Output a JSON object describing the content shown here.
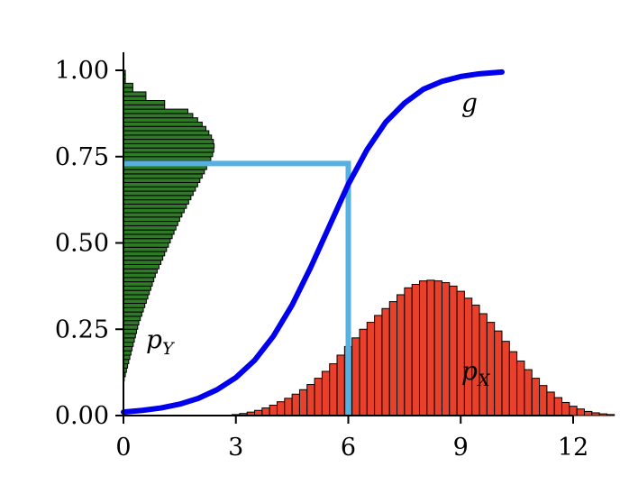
{
  "chart_data": {
    "type": "line",
    "xlim": [
      0,
      12
    ],
    "ylim": [
      0,
      1
    ],
    "x_ticks": [
      "0",
      "3",
      "6",
      "9",
      "12"
    ],
    "y_ticks": [
      "0.00",
      "0.25",
      "0.50",
      "0.75",
      "1.00"
    ],
    "grid": false,
    "curve": {
      "label": "g",
      "color": "#0000ee",
      "x": [
        0,
        0.5,
        1,
        1.5,
        2,
        2.5,
        3,
        3.5,
        4,
        4.5,
        5,
        5.5,
        6,
        6.5,
        7,
        7.5,
        8,
        8.5,
        9,
        9.5,
        10.1
      ],
      "y": [
        0.01,
        0.015,
        0.022,
        0.033,
        0.05,
        0.075,
        0.11,
        0.16,
        0.23,
        0.32,
        0.43,
        0.55,
        0.67,
        0.77,
        0.85,
        0.905,
        0.945,
        0.968,
        0.982,
        0.99,
        0.995
      ]
    },
    "marker": {
      "color": "#56b0e0",
      "x": 6.0,
      "y": 0.73
    },
    "px_histogram": {
      "label": "X",
      "color": "#e8402a",
      "bin_width": 0.2,
      "x_start": 2.9,
      "values": [
        0.003,
        0.006,
        0.01,
        0.015,
        0.022,
        0.03,
        0.04,
        0.05,
        0.062,
        0.075,
        0.09,
        0.108,
        0.128,
        0.15,
        0.175,
        0.2,
        0.225,
        0.25,
        0.27,
        0.29,
        0.31,
        0.33,
        0.35,
        0.37,
        0.38,
        0.39,
        0.392,
        0.39,
        0.385,
        0.375,
        0.36,
        0.34,
        0.32,
        0.295,
        0.27,
        0.245,
        0.215,
        0.185,
        0.158,
        0.133,
        0.108,
        0.087,
        0.068,
        0.052,
        0.038,
        0.027,
        0.019,
        0.012,
        0.008,
        0.005,
        0.003
      ]
    },
    "py_histogram": {
      "label": "Y",
      "color": "#2f7a26",
      "bin_height": 0.0125,
      "y_start": 0.1,
      "values": [
        0.02,
        0.05,
        0.08,
        0.11,
        0.14,
        0.17,
        0.2,
        0.23,
        0.26,
        0.29,
        0.32,
        0.35,
        0.38,
        0.41,
        0.45,
        0.49,
        0.53,
        0.57,
        0.61,
        0.65,
        0.69,
        0.73,
        0.77,
        0.81,
        0.85,
        0.9,
        0.95,
        1.0,
        1.05,
        1.1,
        1.15,
        1.2,
        1.25,
        1.3,
        1.35,
        1.4,
        1.45,
        1.5,
        1.56,
        1.62,
        1.68,
        1.74,
        1.8,
        1.86,
        1.92,
        1.98,
        2.04,
        2.1,
        2.16,
        2.22,
        2.28,
        2.33,
        2.38,
        2.41,
        2.42,
        2.4,
        2.35,
        2.28,
        2.2,
        2.1,
        1.98,
        1.85,
        1.72,
        1.1,
        1.1,
        0.6,
        0.6,
        0.25,
        0.25,
        0.05,
        0.05,
        0.05
      ]
    }
  }
}
